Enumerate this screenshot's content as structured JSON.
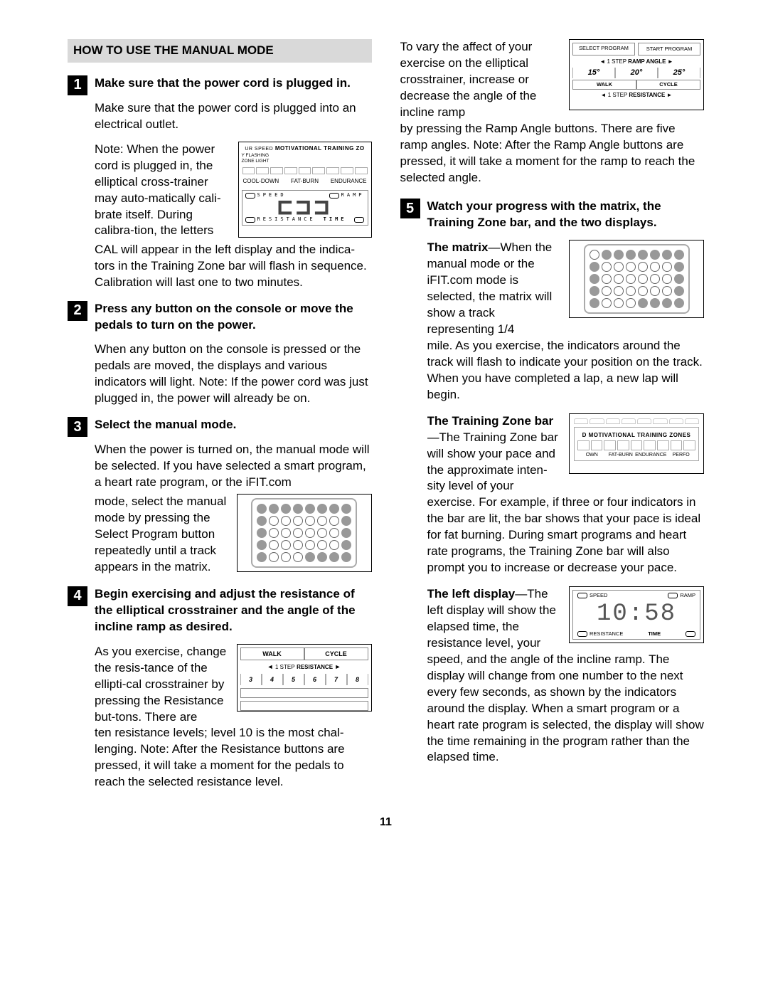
{
  "section_title": "HOW TO USE THE MANUAL MODE",
  "page_number": "11",
  "left": {
    "s1": {
      "num": "1",
      "title": "Make sure that the power cord is plugged in.",
      "p1": "Make sure that the power cord is plugged into an electrical outlet.",
      "p2a": "Note: When the power cord is plugged in, the elliptical cross-trainer may auto-matically cali-brate itself. During calibra-tion, the letters",
      "p2b": "CAL will appear in the left display and the indica-tors in the Training Zone bar will flash in sequence. Calibration will last one to two minutes.",
      "fig": {
        "mtz": "MOTIVATIONAL TRAINING ZO",
        "z1": "COOL-DOWN",
        "z2": "FAT-BURN",
        "z3": "ENDURANCE",
        "top_l": "SPEED",
        "top_r": "RAMP",
        "cal": "CAL",
        "bot_l": "RESISTANCE",
        "bot_r": "TIME"
      }
    },
    "s2": {
      "num": "2",
      "title": "Press any button on the console or move the pedals to turn on the power.",
      "p1": "When any button on the console is pressed or the pedals are moved, the displays and various indicators will light. Note: If the power cord was just plugged in, the power will already be on."
    },
    "s3": {
      "num": "3",
      "title": "Select the manual mode.",
      "p1": "When the power is turned on, the manual mode will be selected. If you have selected a smart program, a heart rate program, or the iFIT.com",
      "p2a": "mode, select the manual mode by pressing the Select Program button repeatedly until a track appears in the matrix.",
      "matrix": [
        [
          1,
          1,
          1,
          1,
          1,
          1,
          1,
          1
        ],
        [
          1,
          0,
          0,
          0,
          0,
          0,
          0,
          1
        ],
        [
          1,
          0,
          0,
          0,
          0,
          0,
          0,
          1
        ],
        [
          1,
          0,
          0,
          0,
          0,
          0,
          0,
          1
        ],
        [
          1,
          0,
          0,
          0,
          1,
          1,
          1,
          1
        ]
      ]
    },
    "s4": {
      "num": "4",
      "title": "Begin exercising and adjust the resistance of the elliptical crosstrainer and the angle of the incline ramp as desired.",
      "p1a": "As you exercise, change the resis-tance of the ellipti-cal crosstrainer by pressing the Resistance but-tons. There are",
      "p1b": "ten resistance levels; level 10 is the most chal-lenging. Note: After the Resistance buttons are pressed, it will take a moment for the pedals to reach the selected resistance level.",
      "fig": {
        "walk": "WALK",
        "cycle": "CYCLE",
        "label": "1 STEP RESISTANCE",
        "nums": [
          "3",
          "4",
          "5",
          "6",
          "7",
          "8"
        ]
      }
    }
  },
  "right": {
    "s4b": {
      "p1a": "To vary the affect of your exercise on the elliptical crosstrainer, increase or decrease the angle of the incline ramp",
      "p1b": "by pressing the Ramp Angle buttons. There are five ramp angles. Note: After the Ramp Angle buttons are pressed, it will take a moment for the ramp to reach the selected angle.",
      "fig": {
        "btn1": "SELECT PROGRAM",
        "btn2": "START PROGRAM",
        "ramp_label": "1 STEP RAMP ANGLE",
        "angles": [
          "15°",
          "20°",
          "25°"
        ],
        "walk": "WALK",
        "cycle": "CYCLE",
        "res": "1 STEP RESISTANCE"
      }
    },
    "s5": {
      "num": "5",
      "title": "Watch your progress with the matrix, the Training Zone bar, and the two displays.",
      "matrix_label": "The matrix",
      "p_matrix_a": "When the manual mode or the iFIT.com mode is selected, the matrix will show a track representing 1/4",
      "p_matrix_b": "mile. As you exercise, the indicators around the track will flash to indicate your position on the track. When you have completed a lap, a new lap will begin.",
      "matrix": [
        [
          0,
          1,
          1,
          1,
          1,
          1,
          1,
          1
        ],
        [
          1,
          0,
          0,
          0,
          0,
          0,
          0,
          1
        ],
        [
          1,
          0,
          0,
          0,
          0,
          0,
          0,
          1
        ],
        [
          1,
          0,
          0,
          0,
          0,
          0,
          0,
          1
        ],
        [
          1,
          0,
          0,
          0,
          1,
          1,
          1,
          1
        ]
      ],
      "tz_label": "The Training Zone bar",
      "p_tz_a": "—The Training Zone bar will show your pace and the approximate inten-sity level of your",
      "p_tz_b": "exercise. For example, if three or four indicators in the bar are lit, the bar shows that your pace is ideal for fat burning. During smart programs and heart rate programs, the Training Zone bar will also prompt you to increase or decrease your pace.",
      "tz_fig": {
        "title": "MOTIVATIONAL TRAINING ZONES",
        "z1": "OWN",
        "z2": "FAT-BURN",
        "z3": "ENDURANCE",
        "z4": "PERFO"
      },
      "ld_label": "The left display",
      "p_ld_a": "—The left display will show the elapsed time, the resistance level, your speed, and the angle of the incline ramp. The",
      "p_ld_b": "display will change from one number to the next every few seconds, as shown by the indicators around the display. When a smart program or a heart rate program is selected, the display will show the time remaining in the program rather than the elapsed time.",
      "ld_fig": {
        "top_l": "SPEED",
        "top_r": "RAMP",
        "value": "10:58",
        "bot_l": "RESISTANCE",
        "bot_r": "TIME"
      }
    }
  }
}
